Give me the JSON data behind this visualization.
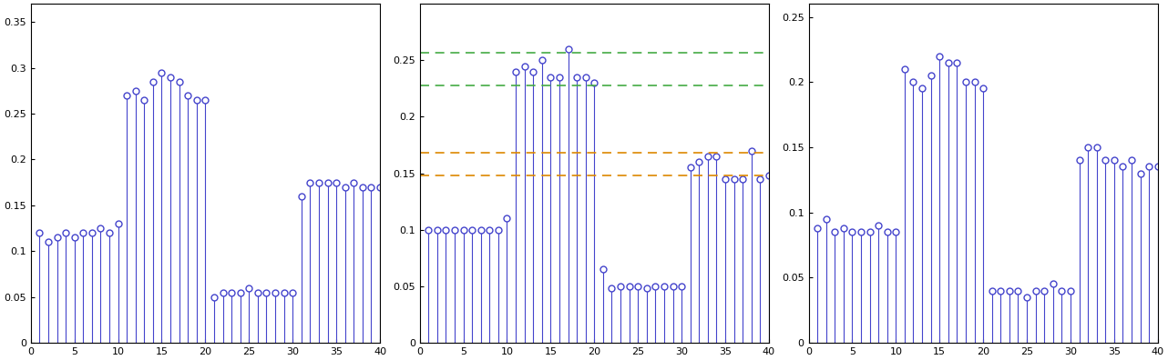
{
  "subplot1": {
    "ylim": [
      0,
      0.37
    ],
    "yticks": [
      0,
      0.05,
      0.1,
      0.15,
      0.2,
      0.25,
      0.3,
      0.35
    ],
    "yticklabels": [
      "0",
      "0.05",
      "0.1",
      "0.15",
      "0.2",
      "0.25",
      "0.3",
      "0.35"
    ],
    "xlim": [
      0,
      40
    ],
    "xticks": [
      0,
      5,
      10,
      15,
      20,
      25,
      30,
      35,
      40
    ],
    "hlines_green": [],
    "hlines_orange": [],
    "values": [
      0.12,
      0.11,
      0.115,
      0.12,
      0.115,
      0.12,
      0.12,
      0.125,
      0.12,
      0.13,
      0.27,
      0.275,
      0.265,
      0.285,
      0.295,
      0.29,
      0.285,
      0.27,
      0.265,
      0.265,
      0.05,
      0.055,
      0.055,
      0.055,
      0.06,
      0.055,
      0.055,
      0.055,
      0.055,
      0.055,
      0.16,
      0.175,
      0.175,
      0.175,
      0.175,
      0.17,
      0.175,
      0.17,
      0.17,
      0.17
    ]
  },
  "subplot2": {
    "ylim": [
      0,
      0.3
    ],
    "yticks": [
      0,
      0.05,
      0.1,
      0.15,
      0.2,
      0.25
    ],
    "yticklabels": [
      "0",
      "0.05",
      "0.1",
      "0.15",
      "0.2",
      "0.25"
    ],
    "xlim": [
      0,
      40
    ],
    "xticks": [
      0,
      5,
      10,
      15,
      20,
      25,
      30,
      35,
      40
    ],
    "hlines_green": [
      0.257,
      0.228
    ],
    "hlines_orange": [
      0.168,
      0.148
    ],
    "values": [
      0.1,
      0.1,
      0.1,
      0.1,
      0.1,
      0.1,
      0.1,
      0.1,
      0.1,
      0.11,
      0.24,
      0.245,
      0.24,
      0.25,
      0.235,
      0.235,
      0.26,
      0.235,
      0.235,
      0.23,
      0.065,
      0.048,
      0.05,
      0.05,
      0.05,
      0.048,
      0.05,
      0.05,
      0.05,
      0.05,
      0.155,
      0.16,
      0.165,
      0.165,
      0.145,
      0.145,
      0.145,
      0.17,
      0.145,
      0.148
    ]
  },
  "subplot3": {
    "ylim": [
      0,
      0.26
    ],
    "yticks": [
      0,
      0.05,
      0.1,
      0.15,
      0.2,
      0.25
    ],
    "yticklabels": [
      "0",
      "0.05",
      "0.1",
      "0.15",
      "0.2",
      "0.25"
    ],
    "xlim": [
      0,
      40
    ],
    "xticks": [
      0,
      5,
      10,
      15,
      20,
      25,
      30,
      35,
      40
    ],
    "hlines_green": [],
    "hlines_orange": [],
    "values": [
      0.088,
      0.095,
      0.085,
      0.088,
      0.085,
      0.085,
      0.085,
      0.09,
      0.085,
      0.085,
      0.21,
      0.2,
      0.195,
      0.205,
      0.22,
      0.215,
      0.215,
      0.2,
      0.2,
      0.195,
      0.04,
      0.04,
      0.04,
      0.04,
      0.035,
      0.04,
      0.04,
      0.045,
      0.04,
      0.04,
      0.14,
      0.15,
      0.15,
      0.14,
      0.14,
      0.135,
      0.14,
      0.13,
      0.135,
      0.135
    ]
  },
  "line_color": "#4444cc",
  "marker_color": "#4444cc",
  "green_color": "#44aa44",
  "orange_color": "#dd8800"
}
